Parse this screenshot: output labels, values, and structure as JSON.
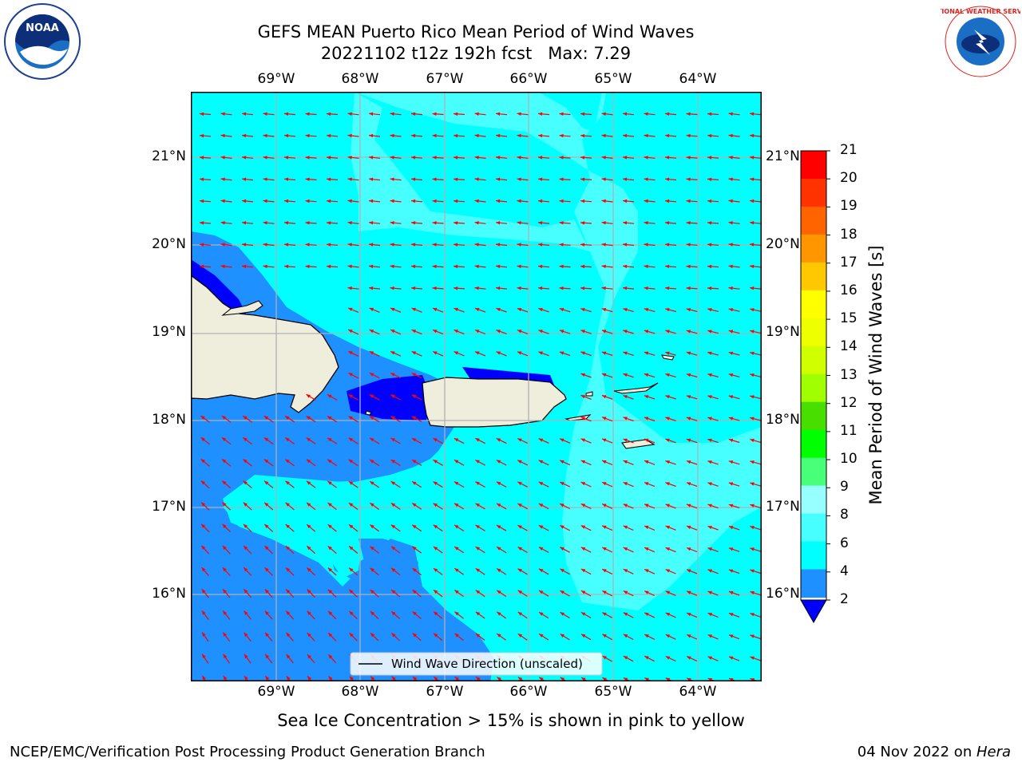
{
  "header": {
    "title_line1": "GEFS MEAN Puerto Rico Mean Period of Wind Waves",
    "title_line2": "20221102 t12z 192h fcst   Max: 7.29"
  },
  "logos": {
    "left_name": "NOAA",
    "right_name": "NATIONAL WEATHER SERVICE"
  },
  "map": {
    "lon_labels": [
      "69°W",
      "68°W",
      "67°W",
      "66°W",
      "65°W",
      "64°W"
    ],
    "lat_labels": [
      "21°N",
      "20°N",
      "19°N",
      "18°N",
      "17°N",
      "16°N"
    ],
    "legend_label": "Wind Wave Direction (unscaled)",
    "arrow_color": "#ff0000"
  },
  "colorbar": {
    "label": "Mean Period of Wind Waves [s]",
    "ticks": [
      "21",
      "20",
      "19",
      "18",
      "17",
      "16",
      "15",
      "14",
      "13",
      "12",
      "11",
      "10",
      "9",
      "8",
      "6",
      "4",
      "2"
    ],
    "colors": {
      "under": "#0000ff",
      "2-4": "#1e90ff",
      "4-6": "#00ffff",
      "6-8": "#48ffff",
      "8-9": "#97ffff",
      "9-10": "#48ff7a",
      "10-11": "#00ff00",
      "11-12": "#48df00",
      "12-13": "#a0ff00",
      "13-14": "#d0ff00",
      "14-15": "#eeff00",
      "15-16": "#ffff00",
      "16-17": "#ffc800",
      "17-18": "#ff9600",
      "18-19": "#ff6400",
      "19-20": "#ff3200",
      "20-21": "#ff0000"
    }
  },
  "note": "Sea Ice Concentration > 15% is shown in pink to yellow",
  "footer": {
    "left": "NCEP/EMC/Verification Post Processing Product Generation Branch",
    "right_date": "04 Nov 2022 on ",
    "right_host": "Hera"
  }
}
